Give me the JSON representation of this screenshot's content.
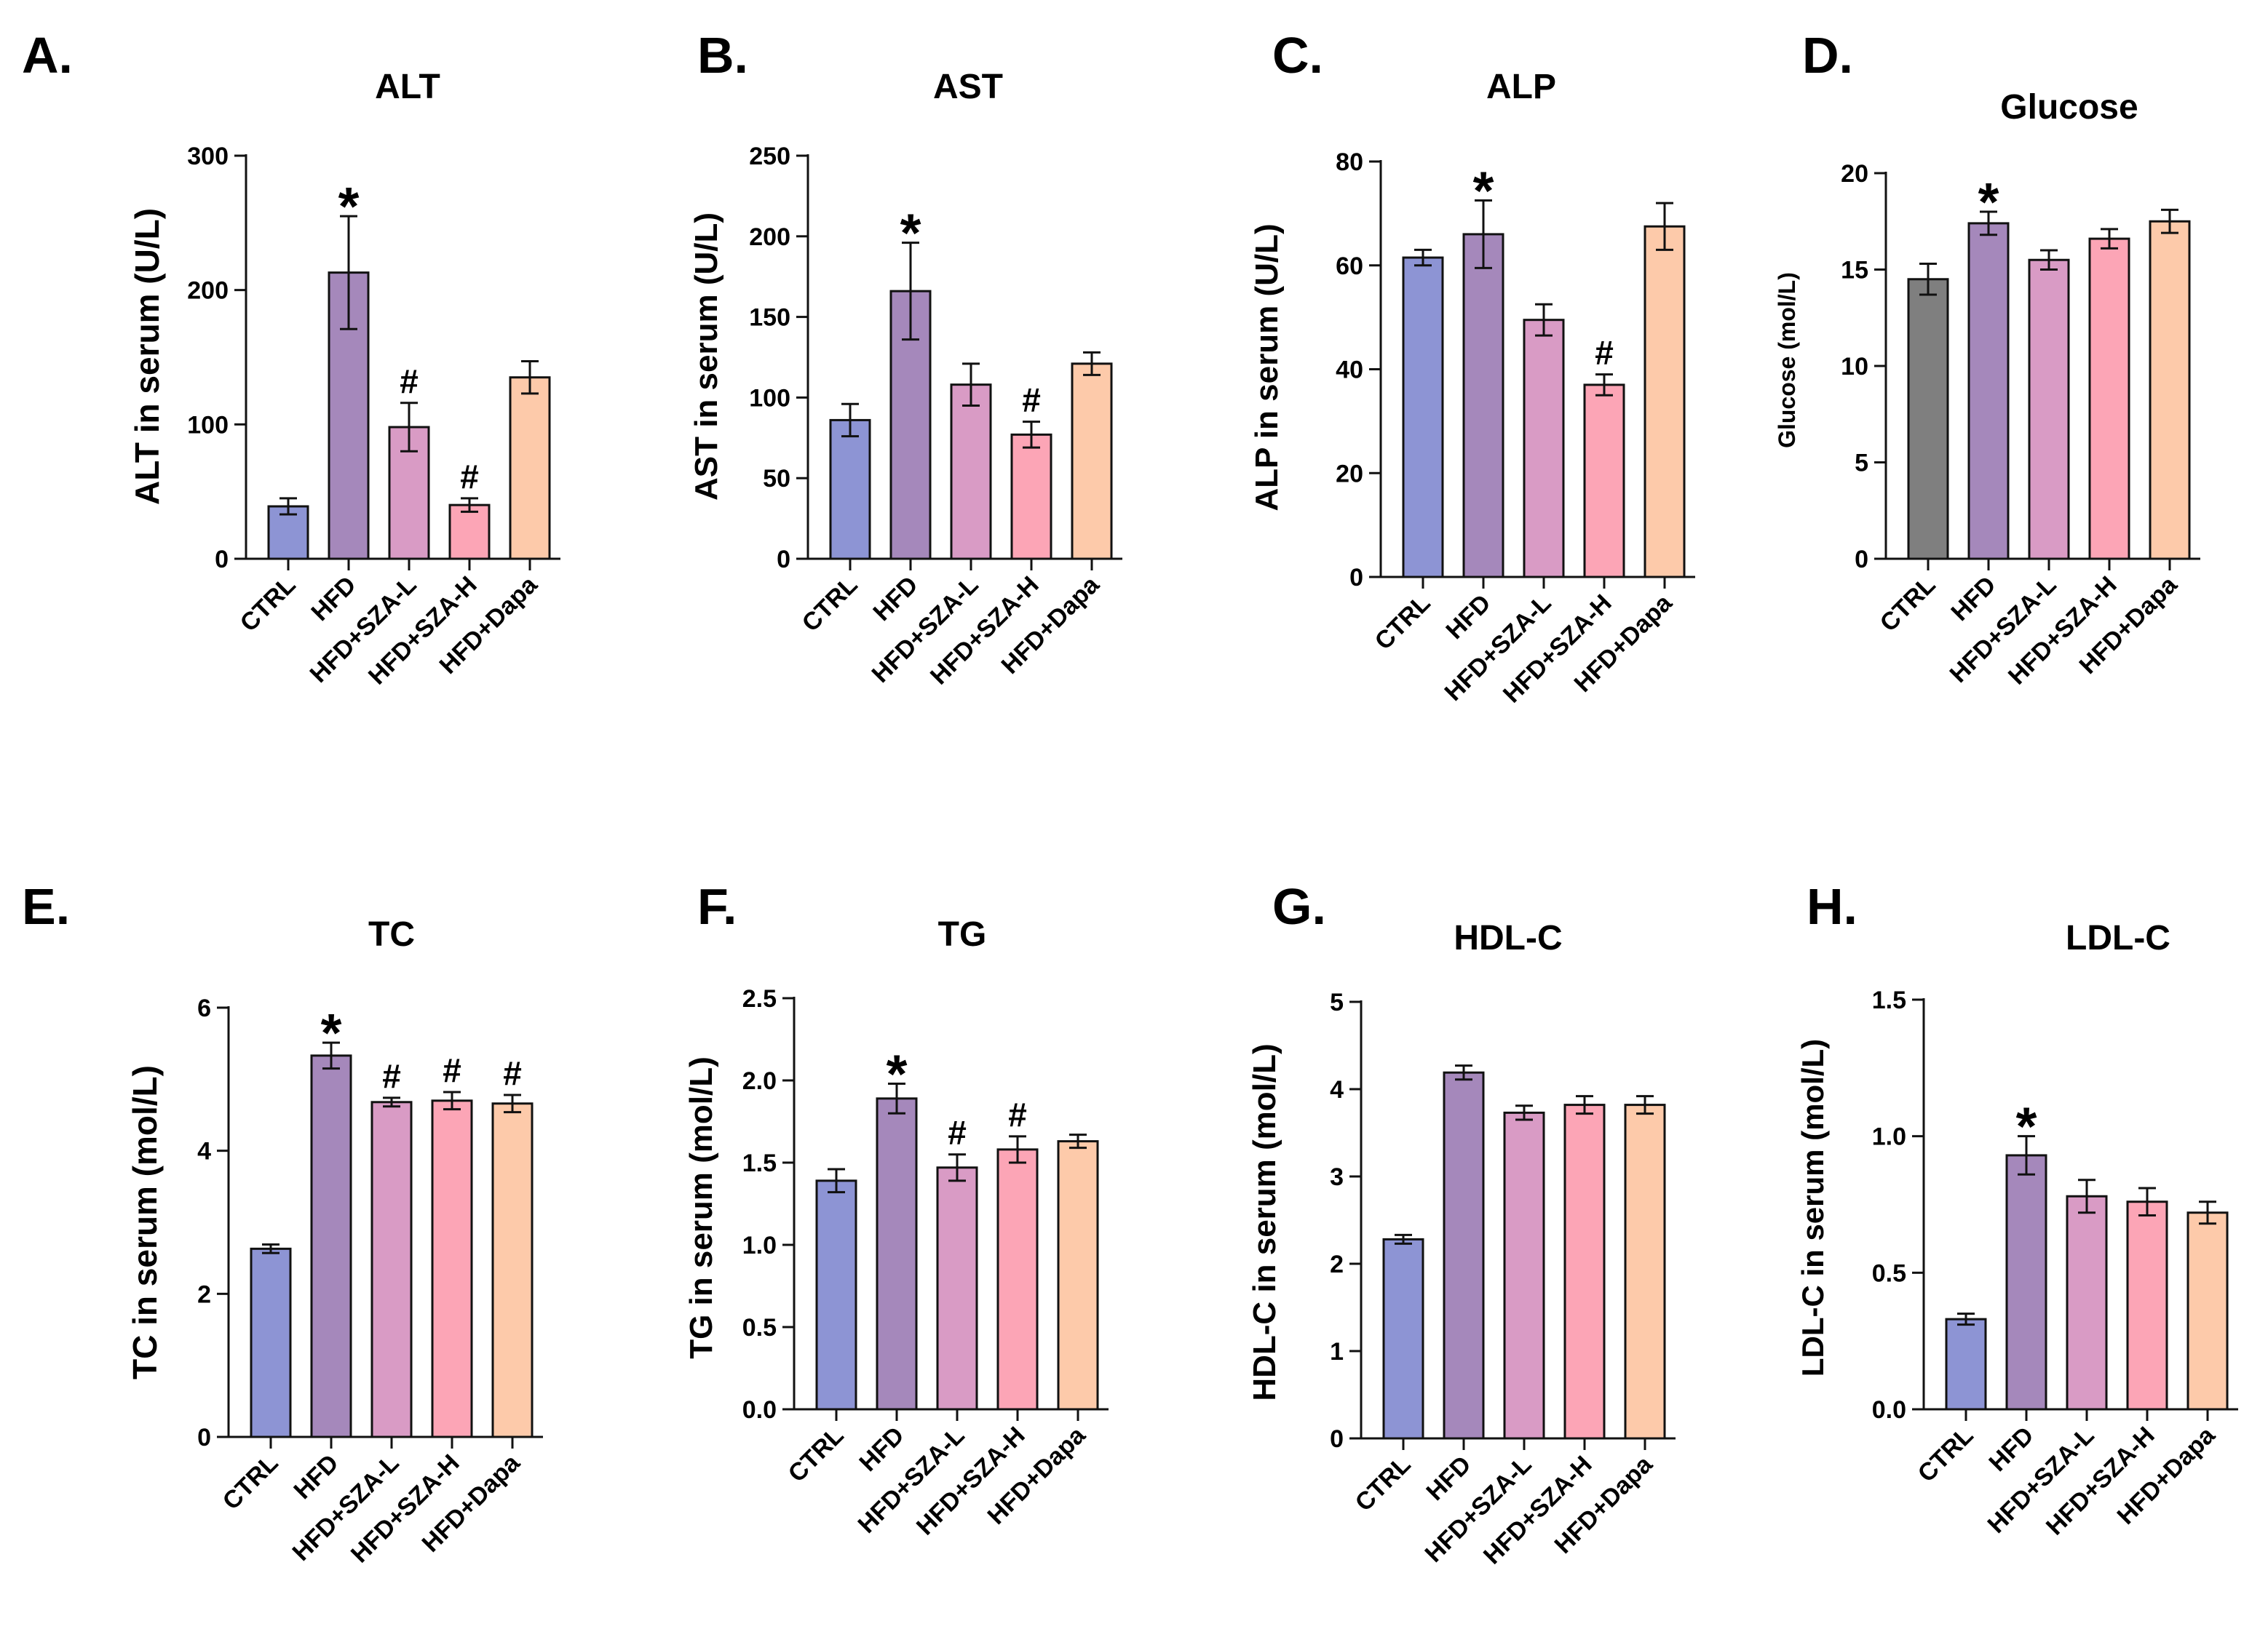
{
  "colors": {
    "ctrl": "#8d94d4",
    "hfd": "#a588bb",
    "sza_l": "#d99bc5",
    "sza_h": "#fca5b6",
    "dapa": "#fdcaaa",
    "ctrl_grey": "#7f7f7f"
  },
  "chart_data": [
    {
      "panel": "A.",
      "type": "bar",
      "title": "ALT",
      "ylabel": "ALT in serum (U/L)",
      "ylim": [
        0,
        300
      ],
      "yticks": [
        0,
        100,
        200,
        300
      ],
      "categories": [
        "CTRL",
        "HFD",
        "HFD+SZA-L",
        "HFD+SZA-H",
        "HFD+Dapa"
      ],
      "values": [
        39,
        213,
        98,
        40,
        135
      ],
      "errors": [
        6,
        42,
        18,
        5,
        12
      ],
      "marks": [
        "",
        "*",
        "#",
        "#",
        ""
      ]
    },
    {
      "panel": "B.",
      "type": "bar",
      "title": "AST",
      "ylabel": "AST in serum (U/L)",
      "ylim": [
        0,
        250
      ],
      "yticks": [
        0,
        50,
        100,
        150,
        200,
        250
      ],
      "categories": [
        "CTRL",
        "HFD",
        "HFD+SZA-L",
        "HFD+SZA-H",
        "HFD+Dapa"
      ],
      "values": [
        86,
        166,
        108,
        77,
        121
      ],
      "errors": [
        10,
        30,
        13,
        8,
        7
      ],
      "marks": [
        "",
        "*",
        "",
        "#",
        ""
      ]
    },
    {
      "panel": "C.",
      "type": "bar",
      "title": "ALP",
      "ylabel": "ALP in serum (U/L)",
      "ylim": [
        0,
        80
      ],
      "yticks": [
        0,
        20,
        40,
        60,
        80
      ],
      "categories": [
        "CTRL",
        "HFD",
        "HFD+SZA-L",
        "HFD+SZA-H",
        "HFD+Dapa"
      ],
      "values": [
        61.5,
        66,
        49.5,
        37,
        67.5
      ],
      "errors": [
        1.5,
        6.5,
        3,
        2,
        4.5
      ],
      "marks": [
        "",
        "*",
        "",
        "#",
        ""
      ]
    },
    {
      "panel": "D.",
      "type": "bar",
      "title": "Glucose",
      "ylabel": "Glucose (mol/L)",
      "ylim": [
        0,
        20
      ],
      "yticks": [
        0,
        5,
        10,
        15,
        20
      ],
      "categories": [
        "CTRL",
        "HFD",
        "HFD+SZA-L",
        "HFD+SZA-H",
        "HFD+Dapa"
      ],
      "values": [
        14.5,
        17.4,
        15.5,
        16.6,
        17.5
      ],
      "errors": [
        0.8,
        0.6,
        0.5,
        0.5,
        0.6
      ],
      "marks": [
        "",
        "*",
        "",
        "",
        ""
      ]
    },
    {
      "panel": "E.",
      "type": "bar",
      "title": "TC",
      "ylabel": "TC in serum (mol/L)",
      "ylim": [
        0,
        6
      ],
      "yticks": [
        0,
        2,
        4,
        6
      ],
      "categories": [
        "CTRL",
        "HFD",
        "HFD+SZA-L",
        "HFD+SZA-H",
        "HFD+Dapa"
      ],
      "values": [
        2.63,
        5.33,
        4.68,
        4.7,
        4.66
      ],
      "errors": [
        0.06,
        0.18,
        0.06,
        0.12,
        0.12
      ],
      "marks": [
        "",
        "*",
        "#",
        "#",
        "#"
      ]
    },
    {
      "panel": "F.",
      "type": "bar",
      "title": "TG",
      "ylabel": "TG in serum (mol/L)",
      "ylim": [
        0,
        2.5
      ],
      "yticks": [
        0.0,
        0.5,
        1.0,
        1.5,
        2.0,
        2.5
      ],
      "categories": [
        "CTRL",
        "HFD",
        "HFD+SZA-L",
        "HFD+SZA-H",
        "HFD+Dapa"
      ],
      "values": [
        1.39,
        1.89,
        1.47,
        1.58,
        1.63
      ],
      "errors": [
        0.07,
        0.09,
        0.08,
        0.08,
        0.04
      ],
      "marks": [
        "",
        "*",
        "#",
        "#",
        ""
      ]
    },
    {
      "panel": "G.",
      "type": "bar",
      "title": "HDL-C",
      "ylabel": "HDL-C in serum (mol/L)",
      "ylim": [
        0,
        5
      ],
      "yticks": [
        0,
        1,
        2,
        3,
        4,
        5
      ],
      "categories": [
        "CTRL",
        "HFD",
        "HFD+SZA-L",
        "HFD+SZA-H",
        "HFD+Dapa"
      ],
      "values": [
        2.28,
        4.19,
        3.73,
        3.82,
        3.82
      ],
      "errors": [
        0.05,
        0.08,
        0.08,
        0.1,
        0.1
      ],
      "marks": [
        "",
        "",
        "",
        "",
        ""
      ]
    },
    {
      "panel": "H.",
      "type": "bar",
      "title": "LDL-C",
      "ylabel": "LDL-C in serum (mol/L)",
      "ylim": [
        0,
        1.5
      ],
      "yticks": [
        0.0,
        0.5,
        1.0,
        1.5
      ],
      "categories": [
        "CTRL",
        "HFD",
        "HFD+SZA-L",
        "HFD+SZA-H",
        "HFD+Dapa"
      ],
      "values": [
        0.33,
        0.93,
        0.78,
        0.76,
        0.72
      ],
      "errors": [
        0.02,
        0.07,
        0.06,
        0.05,
        0.04
      ],
      "marks": [
        "",
        "*",
        "",
        "",
        ""
      ]
    }
  ]
}
